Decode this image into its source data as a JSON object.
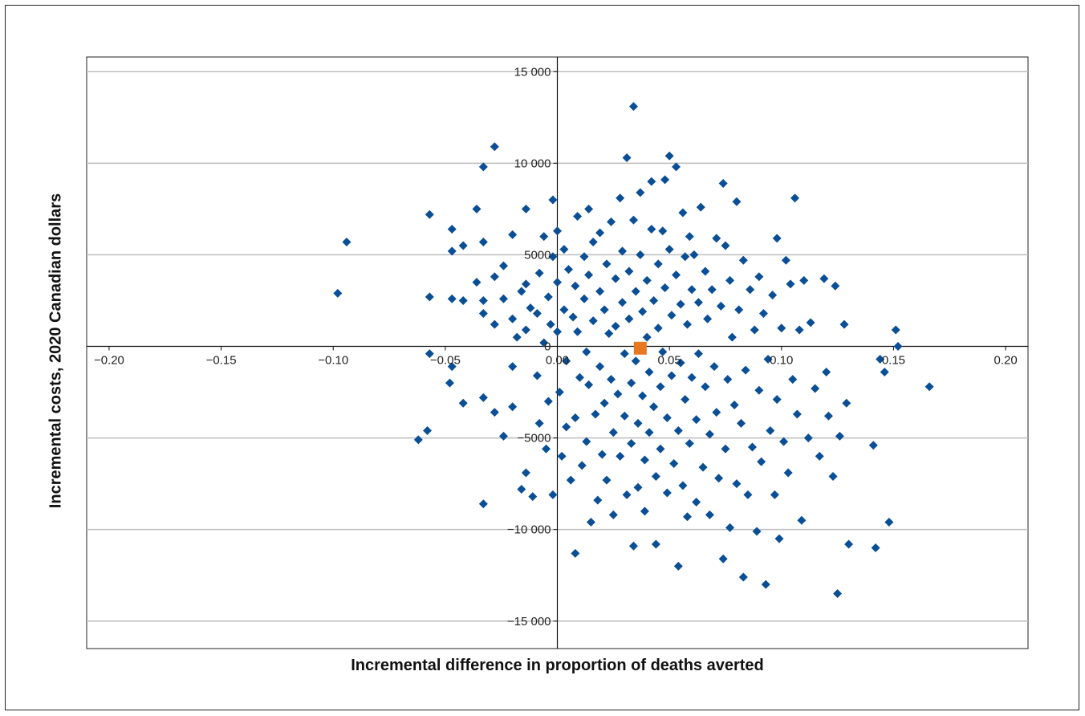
{
  "chart_data": {
    "type": "scatter",
    "xlabel": "Incremental difference in proportion of deaths averted",
    "ylabel": "Incremental costs, 2020 Canadian dollars",
    "xlim": [
      -0.21,
      0.21
    ],
    "ylim": [
      -16500,
      15800
    ],
    "x_ticks": [
      -0.2,
      -0.15,
      -0.1,
      -0.05,
      0.0,
      0.05,
      0.1,
      0.15,
      0.2
    ],
    "x_tick_labels": [
      "−0.20",
      "−0.15",
      "−0.10",
      "−0.05",
      "0.00",
      "0.05",
      "0.10",
      "0.15",
      "0.20"
    ],
    "y_ticks": [
      -15000,
      -10000,
      -5000,
      0,
      5000,
      10000,
      15000
    ],
    "y_tick_labels": [
      "−15 000",
      "−10 000",
      "−5000",
      "0",
      "5000",
      "10 000",
      "15 000"
    ],
    "grid": "horizontal",
    "colors": {
      "points": "#0a4f96",
      "mean_point": "#e87722",
      "grid": "#bdbdbd",
      "axis": "#111111"
    },
    "series": [
      {
        "marker": "diamond",
        "points": [
          [
            -0.098,
            2900
          ],
          [
            -0.094,
            5700
          ],
          [
            -0.057,
            7200
          ],
          [
            -0.057,
            2700
          ],
          [
            -0.057,
            -400
          ],
          [
            -0.058,
            -4600
          ],
          [
            -0.062,
            -5100
          ],
          [
            -0.047,
            6400
          ],
          [
            -0.047,
            5200
          ],
          [
            -0.047,
            2600
          ],
          [
            -0.047,
            -1100
          ],
          [
            -0.048,
            -2000
          ],
          [
            -0.042,
            5500
          ],
          [
            -0.042,
            2500
          ],
          [
            -0.042,
            -3100
          ],
          [
            -0.036,
            7500
          ],
          [
            -0.036,
            3500
          ],
          [
            -0.033,
            9800
          ],
          [
            -0.033,
            5700
          ],
          [
            -0.033,
            2500
          ],
          [
            -0.033,
            1800
          ],
          [
            -0.033,
            -2800
          ],
          [
            -0.033,
            -8600
          ],
          [
            -0.028,
            10900
          ],
          [
            -0.028,
            3800
          ],
          [
            -0.028,
            1200
          ],
          [
            -0.028,
            -3600
          ],
          [
            -0.024,
            4400
          ],
          [
            -0.024,
            2600
          ],
          [
            -0.024,
            -4900
          ],
          [
            -0.02,
            6100
          ],
          [
            -0.02,
            1500
          ],
          [
            -0.02,
            -1100
          ],
          [
            -0.02,
            -3300
          ],
          [
            -0.018,
            500
          ],
          [
            -0.016,
            3000
          ],
          [
            -0.016,
            -7800
          ],
          [
            -0.014,
            7500
          ],
          [
            -0.014,
            3400
          ],
          [
            -0.014,
            900
          ],
          [
            -0.014,
            -6900
          ],
          [
            -0.012,
            2100
          ],
          [
            -0.011,
            -8200
          ],
          [
            -0.009,
            1800
          ],
          [
            -0.009,
            -1600
          ],
          [
            -0.008,
            4000
          ],
          [
            -0.008,
            -4200
          ],
          [
            -0.006,
            6000
          ],
          [
            -0.006,
            200
          ],
          [
            -0.005,
            -5600
          ],
          [
            -0.004,
            2700
          ],
          [
            -0.004,
            -3000
          ],
          [
            -0.003,
            1200
          ],
          [
            -0.002,
            8000
          ],
          [
            -0.002,
            4900
          ],
          [
            -0.002,
            -8100
          ],
          [
            0.0,
            6300
          ],
          [
            0.0,
            3500
          ],
          [
            0.0,
            800
          ],
          [
            0.001,
            -2500
          ],
          [
            0.002,
            -6000
          ],
          [
            0.003,
            5300
          ],
          [
            0.003,
            2000
          ],
          [
            0.004,
            -800
          ],
          [
            0.004,
            -4400
          ],
          [
            0.005,
            4200
          ],
          [
            0.006,
            -7300
          ],
          [
            0.007,
            1600
          ],
          [
            0.008,
            3300
          ],
          [
            0.008,
            -3900
          ],
          [
            0.008,
            -11300
          ],
          [
            0.009,
            7100
          ],
          [
            0.009,
            800
          ],
          [
            0.01,
            -1700
          ],
          [
            0.011,
            -6500
          ],
          [
            0.012,
            4900
          ],
          [
            0.012,
            2600
          ],
          [
            0.013,
            -300
          ],
          [
            0.013,
            -5200
          ],
          [
            0.014,
            7500
          ],
          [
            0.014,
            3900
          ],
          [
            0.014,
            -2100
          ],
          [
            0.015,
            -9600
          ],
          [
            0.016,
            5700
          ],
          [
            0.016,
            1400
          ],
          [
            0.017,
            -3700
          ],
          [
            0.018,
            -8400
          ],
          [
            0.019,
            6200
          ],
          [
            0.019,
            3000
          ],
          [
            0.019,
            -1100
          ],
          [
            0.02,
            -5900
          ],
          [
            0.021,
            2000
          ],
          [
            0.021,
            -3100
          ],
          [
            0.022,
            4500
          ],
          [
            0.022,
            -7300
          ],
          [
            0.023,
            700
          ],
          [
            0.024,
            6800
          ],
          [
            0.024,
            -1800
          ],
          [
            0.025,
            -4700
          ],
          [
            0.025,
            -9200
          ],
          [
            0.026,
            3700
          ],
          [
            0.026,
            1100
          ],
          [
            0.027,
            -2600
          ],
          [
            0.028,
            8100
          ],
          [
            0.028,
            -6000
          ],
          [
            0.029,
            5200
          ],
          [
            0.029,
            2400
          ],
          [
            0.03,
            -400
          ],
          [
            0.03,
            -3800
          ],
          [
            0.031,
            10300
          ],
          [
            0.031,
            -8100
          ],
          [
            0.032,
            4100
          ],
          [
            0.032,
            1500
          ],
          [
            0.033,
            -2000
          ],
          [
            0.033,
            -5300
          ],
          [
            0.034,
            13100
          ],
          [
            0.034,
            6900
          ],
          [
            0.034,
            -10900
          ],
          [
            0.035,
            3000
          ],
          [
            0.035,
            -800
          ],
          [
            0.036,
            -4200
          ],
          [
            0.036,
            -7700
          ],
          [
            0.037,
            8400
          ],
          [
            0.037,
            5000
          ],
          [
            0.038,
            1900
          ],
          [
            0.038,
            -2700
          ],
          [
            0.039,
            -6200
          ],
          [
            0.039,
            -9000
          ],
          [
            0.04,
            3600
          ],
          [
            0.04,
            500
          ],
          [
            0.041,
            -1400
          ],
          [
            0.041,
            -4700
          ],
          [
            0.042,
            9000
          ],
          [
            0.042,
            6400
          ],
          [
            0.043,
            2500
          ],
          [
            0.043,
            -3300
          ],
          [
            0.044,
            -7100
          ],
          [
            0.044,
            -10800
          ],
          [
            0.045,
            4500
          ],
          [
            0.045,
            1000
          ],
          [
            0.046,
            -2200
          ],
          [
            0.046,
            -5600
          ],
          [
            0.047,
            6300
          ],
          [
            0.047,
            -300
          ],
          [
            0.048,
            9100
          ],
          [
            0.048,
            3200
          ],
          [
            0.049,
            -3900
          ],
          [
            0.049,
            -8000
          ],
          [
            0.05,
            10400
          ],
          [
            0.05,
            5300
          ],
          [
            0.051,
            1700
          ],
          [
            0.051,
            -1600
          ],
          [
            0.052,
            -6400
          ],
          [
            0.053,
            9800
          ],
          [
            0.053,
            3900
          ],
          [
            0.054,
            -12000
          ],
          [
            0.054,
            -4600
          ],
          [
            0.055,
            2300
          ],
          [
            0.055,
            -900
          ],
          [
            0.056,
            7300
          ],
          [
            0.056,
            -7600
          ],
          [
            0.057,
            4900
          ],
          [
            0.057,
            -2900
          ],
          [
            0.058,
            1200
          ],
          [
            0.058,
            -9300
          ],
          [
            0.059,
            6000
          ],
          [
            0.059,
            -5300
          ],
          [
            0.06,
            3100
          ],
          [
            0.06,
            -1700
          ],
          [
            0.061,
            5000
          ],
          [
            0.062,
            -4000
          ],
          [
            0.062,
            -8500
          ],
          [
            0.063,
            2400
          ],
          [
            0.063,
            -400
          ],
          [
            0.064,
            7600
          ],
          [
            0.065,
            -6600
          ],
          [
            0.066,
            4100
          ],
          [
            0.066,
            -2200
          ],
          [
            0.067,
            1500
          ],
          [
            0.068,
            -4800
          ],
          [
            0.068,
            -9200
          ],
          [
            0.069,
            3100
          ],
          [
            0.07,
            -1100
          ],
          [
            0.071,
            5900
          ],
          [
            0.071,
            -3600
          ],
          [
            0.072,
            -7200
          ],
          [
            0.073,
            2200
          ],
          [
            0.074,
            8900
          ],
          [
            0.074,
            -11600
          ],
          [
            0.075,
            5500
          ],
          [
            0.075,
            -5600
          ],
          [
            0.076,
            -1800
          ],
          [
            0.077,
            3600
          ],
          [
            0.077,
            -9900
          ],
          [
            0.078,
            500
          ],
          [
            0.079,
            -3200
          ],
          [
            0.08,
            7900
          ],
          [
            0.08,
            -7500
          ],
          [
            0.081,
            2000
          ],
          [
            0.082,
            -4200
          ],
          [
            0.083,
            4700
          ],
          [
            0.083,
            -12600
          ],
          [
            0.084,
            -1300
          ],
          [
            0.085,
            -8100
          ],
          [
            0.086,
            3100
          ],
          [
            0.087,
            -5500
          ],
          [
            0.088,
            900
          ],
          [
            0.089,
            -10100
          ],
          [
            0.09,
            3800
          ],
          [
            0.09,
            -2400
          ],
          [
            0.091,
            -6300
          ],
          [
            0.092,
            1800
          ],
          [
            0.093,
            -13000
          ],
          [
            0.094,
            -700
          ],
          [
            0.095,
            -4600
          ],
          [
            0.096,
            2800
          ],
          [
            0.097,
            -8100
          ],
          [
            0.098,
            5900
          ],
          [
            0.098,
            -2900
          ],
          [
            0.099,
            -10500
          ],
          [
            0.1,
            1000
          ],
          [
            0.101,
            -5200
          ],
          [
            0.102,
            4700
          ],
          [
            0.103,
            -6900
          ],
          [
            0.104,
            3400
          ],
          [
            0.105,
            -1800
          ],
          [
            0.106,
            8100
          ],
          [
            0.107,
            -3700
          ],
          [
            0.108,
            900
          ],
          [
            0.109,
            -9500
          ],
          [
            0.11,
            3600
          ],
          [
            0.112,
            -5000
          ],
          [
            0.113,
            1300
          ],
          [
            0.115,
            -2300
          ],
          [
            0.117,
            -6000
          ],
          [
            0.119,
            3700
          ],
          [
            0.12,
            -1400
          ],
          [
            0.121,
            -3800
          ],
          [
            0.123,
            -7100
          ],
          [
            0.124,
            3300
          ],
          [
            0.125,
            -13500
          ],
          [
            0.126,
            -4900
          ],
          [
            0.128,
            1200
          ],
          [
            0.129,
            -3100
          ],
          [
            0.13,
            -10800
          ],
          [
            0.141,
            -5400
          ],
          [
            0.142,
            -11000
          ],
          [
            0.144,
            -700
          ],
          [
            0.146,
            -1400
          ],
          [
            0.148,
            -9600
          ],
          [
            0.151,
            900
          ],
          [
            0.152,
            0
          ],
          [
            0.166,
            -2200
          ]
        ]
      },
      {
        "marker": "square",
        "points": [
          [
            0.037,
            -100
          ]
        ]
      }
    ]
  }
}
